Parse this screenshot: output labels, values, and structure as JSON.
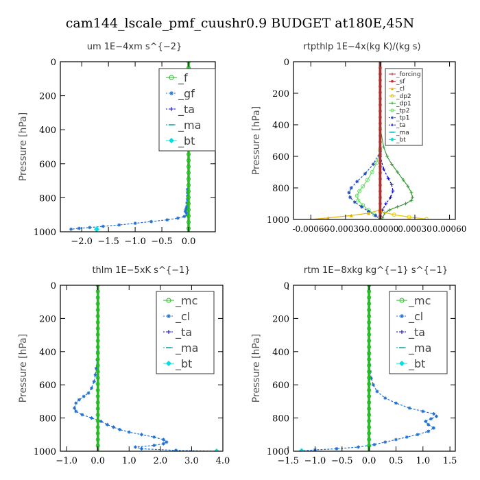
{
  "figure": {
    "title": "cam144_lscale_pmf_cuushr0.9  BUDGET at180E,45N"
  },
  "chart_data": [
    {
      "type": "line",
      "title": "um   1E−4xm  s^{−2}",
      "ylabel": "Pressure [hPa]",
      "xlabel": "",
      "xlim": [
        -2.4,
        0.5
      ],
      "ylim": [
        1000,
        0
      ],
      "xticks": [
        -2.0,
        -1.5,
        -1.0,
        -0.5,
        0.0
      ],
      "xtick_labels": [
        "−2.0",
        "−1.5",
        "−1.0",
        "−0.5",
        "0.0"
      ],
      "yticks": [
        0,
        200,
        400,
        600,
        800,
        1000
      ],
      "ytick_labels": [
        "0",
        "200",
        "400",
        "600",
        "800",
        "1000"
      ],
      "legend_style": "large",
      "legend_position": "top-right",
      "legend": [
        "_f",
        "_gf",
        "_ta",
        "_ma",
        "_bt"
      ],
      "series": [
        {
          "name": "_gf",
          "color": "#1e6fd0",
          "marker": "star",
          "dashed": true,
          "x": [
            -0.02,
            -0.02,
            -0.02,
            -0.02,
            -0.03,
            -0.03,
            -0.04,
            -0.05,
            -0.06,
            -0.04,
            -0.02,
            -0.08,
            -0.2,
            -0.4,
            -0.7,
            -1.0,
            -1.3,
            -1.6,
            -1.85,
            -2.05,
            -2.2
          ],
          "y": [
            750,
            770,
            790,
            810,
            830,
            850,
            860,
            870,
            880,
            890,
            900,
            910,
            920,
            930,
            940,
            950,
            960,
            968,
            975,
            980,
            985
          ]
        },
        {
          "name": "_ta",
          "color": "#0000cc",
          "marker": "plus",
          "dashed": true,
          "x": [
            0,
            0
          ],
          "y": [
            0,
            1000
          ]
        },
        {
          "name": "_ma",
          "color": "#00a0a0",
          "marker": "dash",
          "dashed": true,
          "x": [
            0,
            0
          ],
          "y": [
            0,
            1000
          ]
        },
        {
          "name": "_bt",
          "color": "#00e0e0",
          "marker": "diamond",
          "dashed": false,
          "x": [
            -1.72
          ],
          "y": [
            985
          ]
        },
        {
          "name": "_f",
          "color": "#22bb22",
          "marker": "circle",
          "dashed": false,
          "thick": true,
          "x": [
            0,
            0
          ],
          "y": [
            0,
            1000
          ]
        }
      ]
    },
    {
      "type": "line",
      "title": "rtpthlp   1E−4x(kg K)/(kg s)",
      "ylabel": "Pressure [hPa]",
      "xlabel": "",
      "xlim": [
        -0.00075,
        0.00065
      ],
      "ylim": [
        1000,
        0
      ],
      "xticks": [
        -0.0006,
        -0.0003,
        0.0,
        0.0003,
        0.0006
      ],
      "xtick_labels": [
        "-0.00060",
        "-0.00030",
        "-0.00000",
        "0.00030",
        "0.00060"
      ],
      "yticks": [
        0,
        200,
        400,
        600,
        800,
        1000
      ],
      "ytick_labels": [
        "0",
        "200",
        "400",
        "600",
        "800",
        "1000"
      ],
      "legend_style": "small",
      "legend_position": "top-right",
      "legend": [
        "_forcing",
        "_sf",
        "_cl",
        "_dp2",
        "_dp1",
        "_tp2",
        "_tp1",
        "_ta",
        "_ma",
        "_bt"
      ],
      "series": [
        {
          "name": "_dp1",
          "color": "#3a9a3a",
          "marker": "plus",
          "dashed": false,
          "x": [
            0,
            3e-05,
            6e-05,
            0.0001,
            0.00015,
            0.0002,
            0.00024,
            0.00027,
            0.00028,
            0.00027,
            0.00022,
            0.00015,
            8e-05,
            4e-05,
            2e-05
          ],
          "y": [
            420,
            540,
            600,
            650,
            700,
            750,
            790,
            830,
            860,
            880,
            900,
            920,
            940,
            960,
            990
          ]
        },
        {
          "name": "_tp2",
          "color": "#66dd66",
          "marker": "circle",
          "dashed": false,
          "x": [
            0,
            -3e-05,
            -7e-05,
            -0.00011,
            -0.00015,
            -0.00018,
            -0.0002,
            -0.00019,
            -0.00015,
            -0.0001,
            -5e-05,
            0
          ],
          "y": [
            560,
            640,
            700,
            750,
            790,
            820,
            850,
            880,
            910,
            940,
            970,
            1000
          ]
        },
        {
          "name": "_tp1",
          "color": "#2050c0",
          "marker": "star",
          "dashed": true,
          "x": [
            0,
            -6e-05,
            -0.00013,
            -0.0002,
            -0.00025,
            -0.00027,
            -0.00026,
            -0.00022,
            -0.00016,
            -0.0001,
            -4e-05,
            0
          ],
          "y": [
            570,
            650,
            710,
            760,
            800,
            830,
            860,
            890,
            920,
            950,
            975,
            1000
          ]
        },
        {
          "name": "_ta",
          "color": "#0000cc",
          "marker": "plus",
          "dashed": true,
          "x": [
            0,
            3e-05,
            7e-05,
            0.0001,
            0.00011,
            9e-05,
            5e-05,
            2e-05,
            0
          ],
          "y": [
            600,
            680,
            740,
            780,
            820,
            860,
            900,
            940,
            980
          ]
        },
        {
          "name": "_cl",
          "color": "#e0b000",
          "marker": "triangle",
          "dashed": false,
          "x": [
            0,
            -0.0001,
            -0.00025,
            -0.00045,
            -0.0006
          ],
          "y": [
            940,
            960,
            975,
            990,
            1000
          ]
        },
        {
          "name": "_dp2",
          "color": "#e8c800",
          "marker": "circle",
          "dashed": false,
          "x": [
            0,
            0.00012,
            0.00025,
            0.0004
          ],
          "y": [
            950,
            970,
            985,
            998
          ]
        },
        {
          "name": "_ma",
          "color": "#00a0a0",
          "marker": "dash",
          "dashed": true,
          "x": [
            0,
            0
          ],
          "y": [
            0,
            1000
          ]
        },
        {
          "name": "_bt",
          "color": "#00e0e0",
          "marker": "diamond",
          "dashed": false,
          "x": [
            0,
            0
          ],
          "y": [
            0,
            1000
          ]
        },
        {
          "name": "_sf",
          "color": "#cc2222",
          "marker": "star",
          "dashed": false,
          "thick": true,
          "x": [
            0,
            0
          ],
          "y": [
            0,
            1000
          ]
        },
        {
          "name": "_forcing",
          "color": "#b03030",
          "marker": "plus",
          "dashed": false,
          "thick": true,
          "x": [
            0,
            0
          ],
          "y": [
            0,
            1000
          ]
        }
      ]
    },
    {
      "type": "line",
      "title": "thlm   1E−5xK  s^{−1}",
      "ylabel": "Pressure [hPa]",
      "xlabel": "",
      "xlim": [
        -1.2,
        4.0
      ],
      "ylim": [
        1000,
        0
      ],
      "xticks": [
        -1.0,
        0.0,
        1.0,
        2.0,
        3.0,
        4.0
      ],
      "xtick_labels": [
        "−1.0",
        "0.0",
        "1.0",
        "2.0",
        "3.0",
        "4.0"
      ],
      "yticks": [
        0,
        200,
        400,
        600,
        800,
        1000
      ],
      "ytick_labels": [
        "0",
        "200",
        "400",
        "600",
        "800",
        "1000"
      ],
      "legend_style": "large",
      "legend_position": "top-right",
      "legend": [
        "_mc",
        "_cl",
        "_ta",
        "_ma",
        "_bt"
      ],
      "series": [
        {
          "name": "_cl",
          "color": "#1e6fd0",
          "marker": "star",
          "dashed": true,
          "x": [
            0,
            -0.02,
            -0.05,
            -0.08,
            -0.12,
            -0.2,
            -0.3,
            -0.45,
            -0.6,
            -0.7,
            -0.75,
            -0.7,
            -0.5,
            -0.2,
            0.1,
            0.3,
            0.5,
            0.7,
            1.0,
            1.4,
            1.8,
            2.1,
            2.2,
            2.1,
            1.8,
            1.2,
            1.4,
            2.5,
            3.8
          ],
          "y": [
            400,
            450,
            500,
            540,
            580,
            620,
            650,
            670,
            690,
            710,
            740,
            760,
            780,
            800,
            820,
            840,
            855,
            870,
            885,
            900,
            915,
            930,
            945,
            955,
            965,
            975,
            985,
            995,
            1000
          ]
        },
        {
          "name": "_ta",
          "color": "#0000cc",
          "marker": "plus",
          "dashed": true,
          "x": [
            0,
            0
          ],
          "y": [
            0,
            1000
          ]
        },
        {
          "name": "_ma",
          "color": "#00a0a0",
          "marker": "dash",
          "dashed": true,
          "x": [
            0,
            0
          ],
          "y": [
            0,
            1000
          ]
        },
        {
          "name": "_bt",
          "color": "#00e0e0",
          "marker": "diamond",
          "dashed": false,
          "x": [
            3.8
          ],
          "y": [
            1000
          ]
        },
        {
          "name": "_mc",
          "color": "#22bb22",
          "marker": "circle",
          "dashed": false,
          "thick": true,
          "x": [
            0,
            0
          ],
          "y": [
            0,
            1000
          ]
        }
      ]
    },
    {
      "type": "line",
      "title": "rtm   1E−8xkg  kg^{−1}  s^{−1}",
      "ylabel": "Pressure [hPa]",
      "xlabel": "",
      "xlim": [
        -1.4,
        1.6
      ],
      "ylim": [
        1000,
        0
      ],
      "xticks": [
        -1.5,
        -1.0,
        -0.5,
        0.0,
        0.5,
        1.0,
        1.5
      ],
      "xtick_labels": [
        "−1.5",
        "−1.0",
        "−0.5",
        "0.0",
        "0.5",
        "1.0",
        "1.5"
      ],
      "yticks": [
        0,
        200,
        400,
        600,
        800,
        1000
      ],
      "ytick_labels": [
        "0",
        "200",
        "400",
        "600",
        "800",
        "1000"
      ],
      "legend_style": "large",
      "legend_position": "top-right",
      "legend": [
        "_mc",
        "_cl",
        "_ta",
        "_ma",
        "_bt"
      ],
      "series": [
        {
          "name": "_cl",
          "color": "#1e6fd0",
          "marker": "star",
          "dashed": true,
          "x": [
            0,
            0.01,
            0.02,
            0.04,
            0.08,
            0.15,
            0.3,
            0.5,
            0.75,
            1.0,
            1.2,
            1.25,
            1.15,
            1.05,
            1.1,
            1.2,
            1.1,
            0.9,
            0.7,
            0.5,
            0.3,
            0.1,
            -0.2,
            -0.6,
            -1.0,
            -1.25
          ],
          "y": [
            420,
            480,
            520,
            560,
            600,
            640,
            680,
            710,
            740,
            760,
            775,
            790,
            805,
            820,
            840,
            860,
            880,
            900,
            915,
            930,
            945,
            960,
            975,
            985,
            992,
            998
          ]
        },
        {
          "name": "_ta",
          "color": "#0000cc",
          "marker": "plus",
          "dashed": true,
          "x": [
            0,
            0
          ],
          "y": [
            0,
            1000
          ]
        },
        {
          "name": "_ma",
          "color": "#00a0a0",
          "marker": "dash",
          "dashed": true,
          "x": [
            0,
            0
          ],
          "y": [
            0,
            1000
          ]
        },
        {
          "name": "_bt",
          "color": "#00e0e0",
          "marker": "diamond",
          "dashed": false,
          "x": [
            -1.25
          ],
          "y": [
            998
          ]
        },
        {
          "name": "_mc",
          "color": "#22bb22",
          "marker": "circle",
          "dashed": false,
          "thick": true,
          "x": [
            0,
            0
          ],
          "y": [
            0,
            1000
          ]
        }
      ]
    }
  ]
}
